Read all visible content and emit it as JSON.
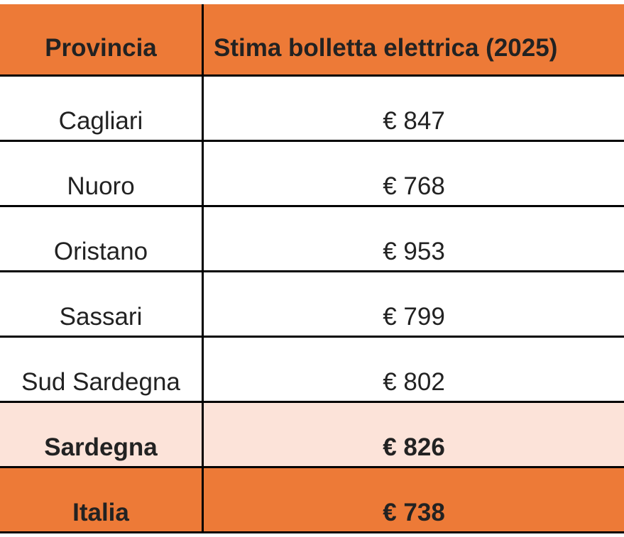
{
  "table": {
    "headers": [
      "Provincia",
      "Stima bolletta elettrica (2025)"
    ],
    "rows": [
      {
        "provincia": "Cagliari",
        "stima": "€ 847"
      },
      {
        "provincia": "Nuoro",
        "stima": "€ 768"
      },
      {
        "provincia": "Oristano",
        "stima": "€ 953"
      },
      {
        "provincia": "Sassari",
        "stima": "€ 799"
      },
      {
        "provincia": "Sud Sardegna",
        "stima": "€ 802"
      }
    ],
    "regional_total": {
      "provincia": "Sardegna",
      "stima": "€ 826"
    },
    "national_total": {
      "provincia": "Italia",
      "stima": "€ 738"
    }
  },
  "colors": {
    "header_bg": "#ED7A37",
    "region_bg": "#FCE3D9",
    "national_bg": "#ED7A37",
    "border": "#000000",
    "text": "#222222"
  }
}
